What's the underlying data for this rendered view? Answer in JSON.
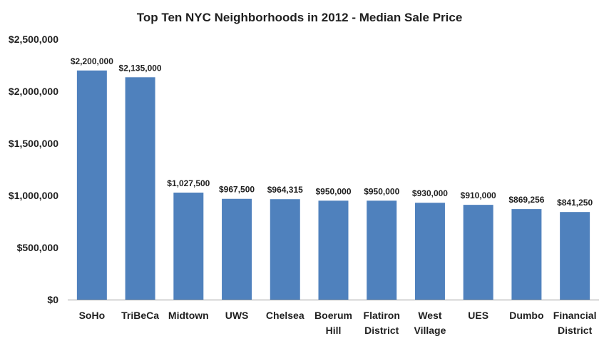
{
  "chart_data": {
    "type": "bar",
    "title": "Top Ten NYC Neighborhoods in 2012 - Median Sale Price",
    "xlabel": "",
    "ylabel": "",
    "categories": [
      [
        "SoHo"
      ],
      [
        "TriBeCa"
      ],
      [
        "Midtown"
      ],
      [
        "UWS"
      ],
      [
        "Chelsea"
      ],
      [
        "Boerum",
        "Hill"
      ],
      [
        "Flatiron",
        "District"
      ],
      [
        "West",
        "Village"
      ],
      [
        "UES"
      ],
      [
        "Dumbo"
      ],
      [
        "Financial",
        "District"
      ]
    ],
    "values": [
      2200000,
      2135000,
      1027500,
      967500,
      964315,
      950000,
      950000,
      930000,
      910000,
      869256,
      841250
    ],
    "data_labels": [
      "$2,200,000",
      "$2,135,000",
      "$1,027,500",
      "$967,500",
      "$964,315",
      "$950,000",
      "$950,000",
      "$930,000",
      "$910,000",
      "$869,256",
      "$841,250"
    ],
    "ylim": [
      0,
      2500000
    ],
    "yticks": [
      0,
      500000,
      1000000,
      1500000,
      2000000,
      2500000
    ],
    "ytick_labels": [
      "$0",
      "$500,000",
      "$1,000,000",
      "$1,500,000",
      "$2,000,000",
      "$2,500,000"
    ],
    "grid": false,
    "legend": "none",
    "bar_color": "#4f81bd"
  }
}
